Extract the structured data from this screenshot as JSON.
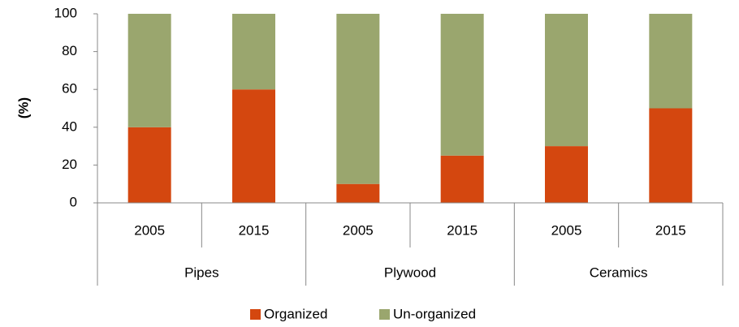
{
  "chart_data": {
    "type": "stacked_bar",
    "y_label": "(%)",
    "categories": [
      "2005",
      "2015",
      "2005",
      "2015",
      "2005",
      "2015"
    ],
    "groups": [
      "Pipes",
      "Plywood",
      "Ceramics"
    ],
    "series": [
      {
        "name": "Organized",
        "color": "#d4470f",
        "values": [
          40,
          60,
          10,
          25,
          30,
          50
        ]
      },
      {
        "name": "Un-organized",
        "color": "#9aa66e",
        "values": [
          60,
          40,
          90,
          75,
          70,
          50
        ]
      }
    ],
    "ylim": [
      0,
      100
    ],
    "yticks": [
      0,
      20,
      40,
      60,
      80,
      100
    ]
  }
}
